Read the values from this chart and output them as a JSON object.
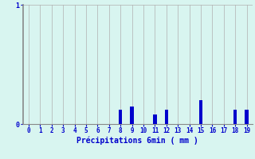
{
  "title": "",
  "xlabel": "Précipitations 6min ( mm )",
  "ylabel": "",
  "xlim": [
    -0.5,
    19.5
  ],
  "ylim": [
    0,
    1.0
  ],
  "yticks": [
    0,
    1
  ],
  "xticks": [
    0,
    1,
    2,
    3,
    4,
    5,
    6,
    7,
    8,
    9,
    10,
    11,
    12,
    13,
    14,
    15,
    16,
    17,
    18,
    19
  ],
  "bar_positions": [
    8,
    9,
    11,
    12,
    15,
    18,
    19
  ],
  "bar_heights": [
    0.12,
    0.15,
    0.08,
    0.12,
    0.2,
    0.12,
    0.12
  ],
  "bar_color": "#0000cc",
  "bar_width": 0.3,
  "background_color": "#d8f5f0",
  "grid_color": "#b0b0b0",
  "tick_color": "#0000cc",
  "label_color": "#0000cc",
  "font_family": "monospace",
  "tick_fontsize": 5.5,
  "xlabel_fontsize": 7.0
}
